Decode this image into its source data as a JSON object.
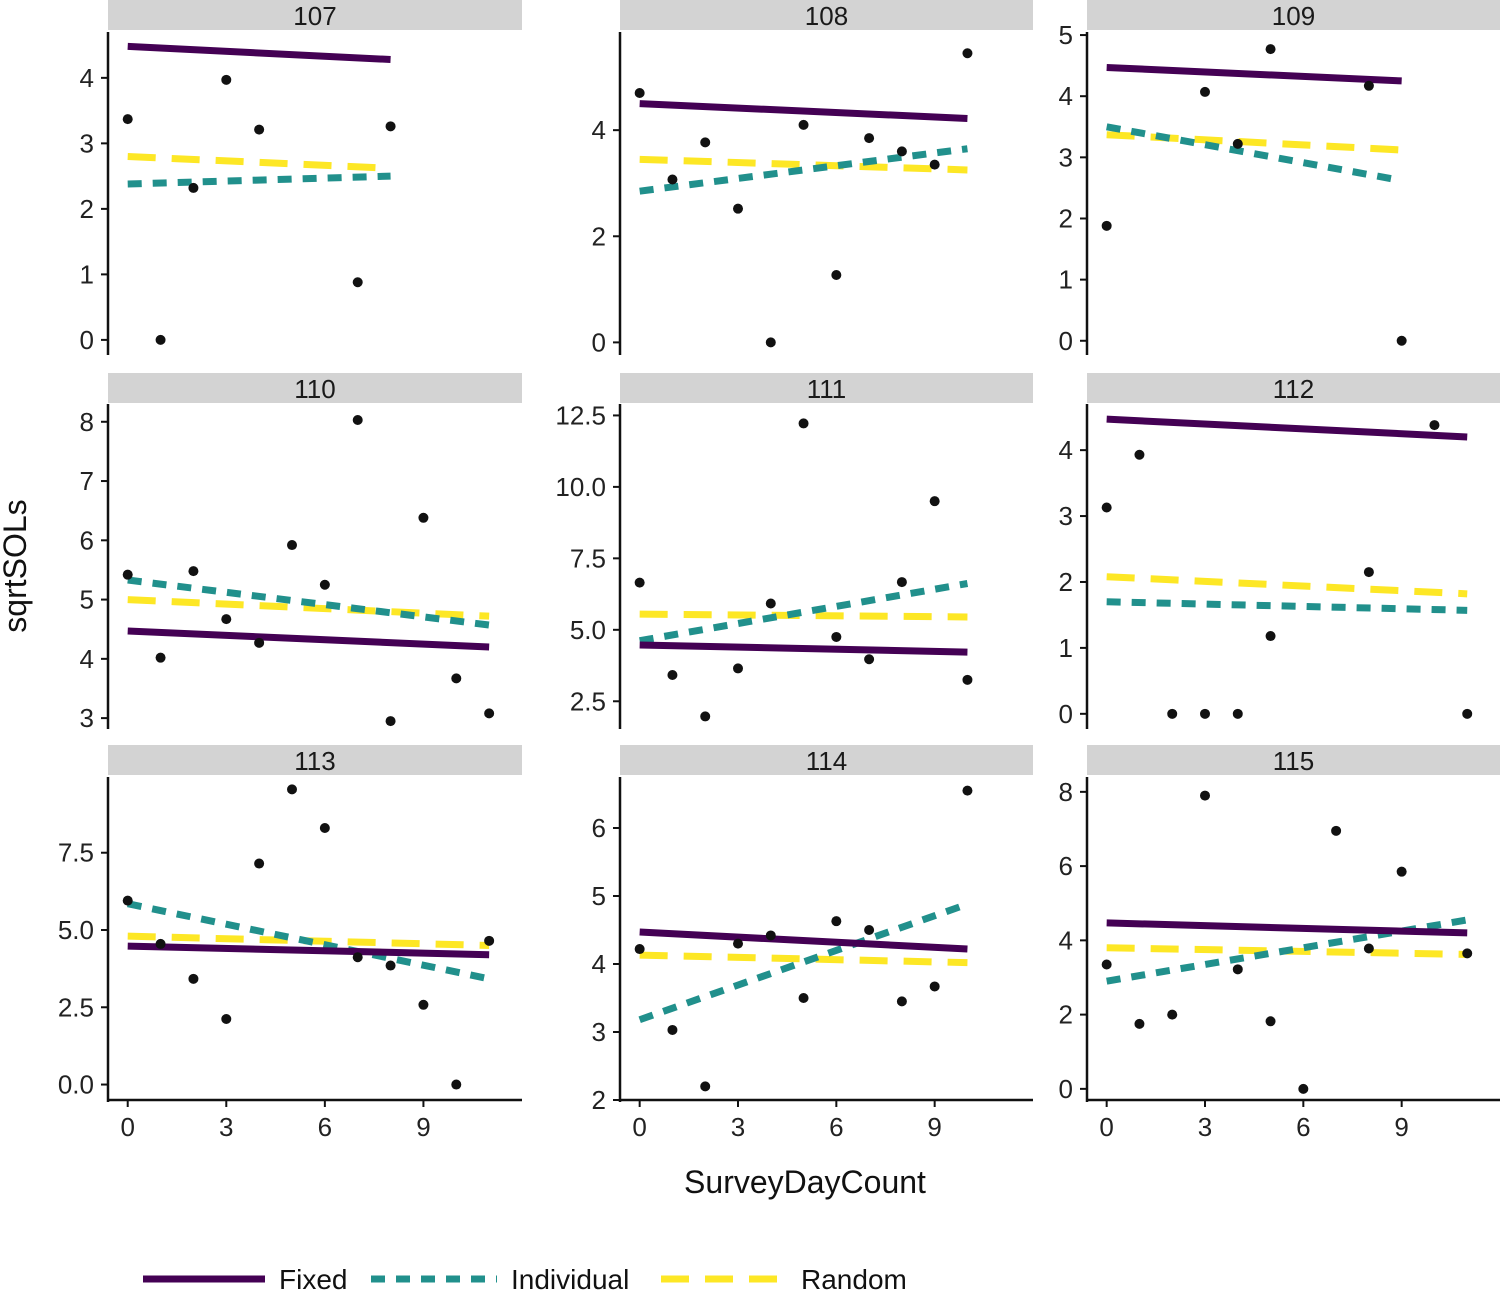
{
  "chart_data": {
    "type": "scatter",
    "facet_layout": "3x3 grid",
    "xlabel": "SurveyDayCount",
    "ylabel": "sqrtSOLs",
    "x_ticks": [
      0,
      3,
      6,
      9
    ],
    "xlim": [
      -0.6,
      12.0
    ],
    "legend": {
      "position": "bottom",
      "entries": [
        {
          "label": "Fixed",
          "style": "solid",
          "color": "#440154"
        },
        {
          "label": "Individual",
          "style": "dashed",
          "color": "#21908C"
        },
        {
          "label": "Random",
          "style": "longdash",
          "color": "#FDE725"
        }
      ]
    },
    "facets": [
      {
        "label": "107",
        "ylim": [
          -0.2,
          4.7
        ],
        "y_ticks": [
          0,
          1,
          2,
          3,
          4
        ],
        "y_tick_labels": [
          "0",
          "1",
          "2",
          "3",
          "4"
        ],
        "points": [
          [
            0,
            3.37
          ],
          [
            1,
            0.0
          ],
          [
            2,
            2.32
          ],
          [
            3,
            3.97
          ],
          [
            4,
            3.21
          ],
          [
            7,
            0.88
          ],
          [
            8,
            3.26
          ]
        ],
        "lines": {
          "Fixed": [
            [
              0,
              4.48
            ],
            [
              8,
              4.28
            ]
          ],
          "Individual": [
            [
              0,
              2.38
            ],
            [
              8,
              2.5
            ]
          ],
          "Random": [
            [
              0,
              2.8
            ],
            [
              8,
              2.62
            ]
          ]
        }
      },
      {
        "label": "108",
        "ylim": [
          -0.2,
          5.85
        ],
        "y_ticks": [
          0,
          2,
          4
        ],
        "y_tick_labels": [
          "0",
          "2",
          "4"
        ],
        "points": [
          [
            0,
            4.7
          ],
          [
            1,
            3.07
          ],
          [
            2,
            3.77
          ],
          [
            3,
            2.52
          ],
          [
            4,
            0.0
          ],
          [
            5,
            4.1
          ],
          [
            6,
            1.27
          ],
          [
            7,
            3.85
          ],
          [
            8,
            3.6
          ],
          [
            9,
            3.35
          ],
          [
            10,
            5.45
          ]
        ],
        "lines": {
          "Fixed": [
            [
              0,
              4.5
            ],
            [
              10,
              4.22
            ]
          ],
          "Individual": [
            [
              0,
              2.85
            ],
            [
              10,
              3.65
            ]
          ],
          "Random": [
            [
              0,
              3.45
            ],
            [
              10,
              3.25
            ]
          ]
        }
      },
      {
        "label": "109",
        "ylim": [
          -0.2,
          5.05
        ],
        "y_ticks": [
          0,
          1,
          2,
          3,
          4,
          5
        ],
        "y_tick_labels": [
          "0",
          "1",
          "2",
          "3",
          "4",
          "5"
        ],
        "points": [
          [
            0,
            1.88
          ],
          [
            3,
            4.07
          ],
          [
            4,
            3.22
          ],
          [
            5,
            4.77
          ],
          [
            8,
            4.17
          ],
          [
            9,
            0.0
          ]
        ],
        "lines": {
          "Fixed": [
            [
              0,
              4.47
            ],
            [
              9,
              4.25
            ]
          ],
          "Individual": [
            [
              0,
              3.5
            ],
            [
              9,
              2.62
            ]
          ],
          "Random": [
            [
              0,
              3.37
            ],
            [
              9,
              3.12
            ]
          ]
        }
      },
      {
        "label": "110",
        "ylim": [
          2.85,
          8.3
        ],
        "y_ticks": [
          3,
          4,
          5,
          6,
          7,
          8
        ],
        "y_tick_labels": [
          "3",
          "4",
          "5",
          "6",
          "7",
          "8"
        ],
        "points": [
          [
            0,
            5.42
          ],
          [
            1,
            4.02
          ],
          [
            2,
            5.48
          ],
          [
            3,
            4.67
          ],
          [
            4,
            4.27
          ],
          [
            5,
            5.92
          ],
          [
            6,
            5.25
          ],
          [
            7,
            8.03
          ],
          [
            8,
            2.95
          ],
          [
            9,
            6.38
          ],
          [
            10,
            3.67
          ],
          [
            11,
            3.08
          ]
        ],
        "lines": {
          "Fixed": [
            [
              0,
              4.47
            ],
            [
              11,
              4.2
            ]
          ],
          "Individual": [
            [
              0,
              5.33
            ],
            [
              11,
              4.57
            ]
          ],
          "Random": [
            [
              0,
              5.0
            ],
            [
              11,
              4.72
            ]
          ]
        }
      },
      {
        "label": "111",
        "ylim": [
          1.6,
          12.9
        ],
        "y_ticks": [
          2.5,
          5.0,
          7.5,
          10.0,
          12.5
        ],
        "y_tick_labels": [
          "2.5",
          "5.0",
          "7.5",
          "10.0",
          "12.5"
        ],
        "points": [
          [
            0,
            6.65
          ],
          [
            1,
            3.42
          ],
          [
            2,
            1.97
          ],
          [
            3,
            3.65
          ],
          [
            4,
            5.92
          ],
          [
            5,
            12.22
          ],
          [
            6,
            4.75
          ],
          [
            7,
            3.97
          ],
          [
            8,
            6.67
          ],
          [
            9,
            9.5
          ],
          [
            10,
            3.25
          ]
        ],
        "lines": {
          "Fixed": [
            [
              0,
              4.47
            ],
            [
              10,
              4.22
            ]
          ],
          "Individual": [
            [
              0,
              4.62
            ],
            [
              10,
              6.62
            ]
          ],
          "Random": [
            [
              0,
              5.55
            ],
            [
              10,
              5.45
            ]
          ]
        }
      },
      {
        "label": "112",
        "ylim": [
          -0.2,
          4.7
        ],
        "y_ticks": [
          0,
          1,
          2,
          3,
          4
        ],
        "y_tick_labels": [
          "0",
          "1",
          "2",
          "3",
          "4"
        ],
        "points": [
          [
            0,
            3.13
          ],
          [
            1,
            3.93
          ],
          [
            2,
            0.0
          ],
          [
            3,
            0.0
          ],
          [
            4,
            0.0
          ],
          [
            5,
            1.18
          ],
          [
            8,
            2.15
          ],
          [
            10,
            4.38
          ],
          [
            11,
            0.0
          ]
        ],
        "lines": {
          "Fixed": [
            [
              0,
              4.47
            ],
            [
              11,
              4.2
            ]
          ],
          "Individual": [
            [
              0,
              1.7
            ],
            [
              11,
              1.57
            ]
          ],
          "Random": [
            [
              0,
              2.08
            ],
            [
              11,
              1.82
            ]
          ]
        }
      },
      {
        "label": "113",
        "ylim": [
          -0.5,
          9.95
        ],
        "y_ticks": [
          0.0,
          2.5,
          5.0,
          7.5
        ],
        "y_tick_labels": [
          "0.0",
          "2.5",
          "5.0",
          "7.5"
        ],
        "points": [
          [
            0,
            5.95
          ],
          [
            1,
            4.55
          ],
          [
            2,
            3.42
          ],
          [
            3,
            2.12
          ],
          [
            4,
            7.15
          ],
          [
            5,
            9.55
          ],
          [
            6,
            8.3
          ],
          [
            7,
            4.12
          ],
          [
            8,
            3.85
          ],
          [
            9,
            2.58
          ],
          [
            10,
            0.0
          ],
          [
            11,
            4.65
          ]
        ],
        "lines": {
          "Fixed": [
            [
              0,
              4.48
            ],
            [
              11,
              4.2
            ]
          ],
          "Individual": [
            [
              0,
              5.85
            ],
            [
              11,
              3.42
            ]
          ],
          "Random": [
            [
              0,
              4.8
            ],
            [
              11,
              4.5
            ]
          ]
        }
      },
      {
        "label": "114",
        "ylim": [
          2.0,
          6.75
        ],
        "y_ticks": [
          2,
          3,
          4,
          5,
          6
        ],
        "y_tick_labels": [
          "2",
          "3",
          "4",
          "5",
          "6"
        ],
        "points": [
          [
            0,
            4.22
          ],
          [
            1,
            3.03
          ],
          [
            2,
            2.2
          ],
          [
            3,
            4.3
          ],
          [
            4,
            4.42
          ],
          [
            5,
            3.5
          ],
          [
            6,
            4.63
          ],
          [
            7,
            4.5
          ],
          [
            8,
            3.45
          ],
          [
            9,
            3.67
          ],
          [
            10,
            6.55
          ]
        ],
        "lines": {
          "Fixed": [
            [
              0,
              4.47
            ],
            [
              10,
              4.22
            ]
          ],
          "Individual": [
            [
              0,
              3.18
            ],
            [
              10,
              4.88
            ]
          ],
          "Random": [
            [
              0,
              4.13
            ],
            [
              10,
              4.02
            ]
          ]
        }
      },
      {
        "label": "115",
        "ylim": [
          -0.3,
          8.4
        ],
        "y_ticks": [
          0,
          2,
          4,
          6,
          8
        ],
        "y_tick_labels": [
          "0",
          "2",
          "4",
          "6",
          "8"
        ],
        "points": [
          [
            0,
            3.35
          ],
          [
            1,
            1.75
          ],
          [
            2,
            2.0
          ],
          [
            3,
            7.9
          ],
          [
            4,
            3.22
          ],
          [
            5,
            1.82
          ],
          [
            6,
            0.0
          ],
          [
            7,
            6.95
          ],
          [
            8,
            3.78
          ],
          [
            9,
            5.85
          ],
          [
            11,
            3.65
          ]
        ],
        "lines": {
          "Fixed": [
            [
              0,
              4.47
            ],
            [
              11,
              4.2
            ]
          ],
          "Individual": [
            [
              0,
              2.9
            ],
            [
              11,
              4.55
            ]
          ],
          "Random": [
            [
              0,
              3.8
            ],
            [
              11,
              3.62
            ]
          ]
        }
      }
    ]
  }
}
